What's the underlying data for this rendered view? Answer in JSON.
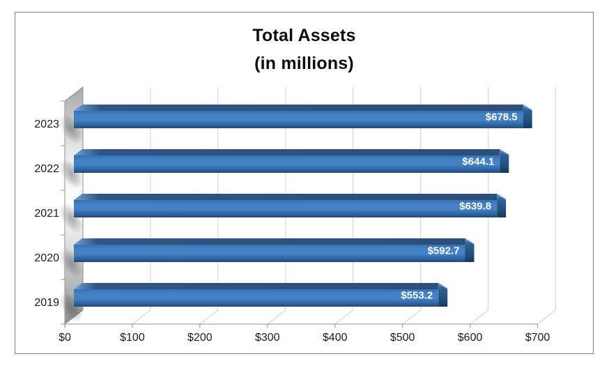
{
  "frame": {
    "background": "#FFFFFF",
    "border_color": "#7F7F7F"
  },
  "chart_data": {
    "type": "bar",
    "orientation": "horizontal",
    "effect": "3d",
    "title": "Total Assets",
    "subtitle": "(in millions)",
    "categories": [
      "2023",
      "2022",
      "2021",
      "2020",
      "2019"
    ],
    "values": [
      678.5,
      644.1,
      639.8,
      592.7,
      553.2
    ],
    "value_labels": [
      "$678.5",
      "$644.1",
      "$639.8",
      "$592.7",
      "$553.2"
    ],
    "xlabel": "",
    "ylabel": "",
    "xlim": [
      0,
      700
    ],
    "xticks": {
      "values": [
        0,
        100,
        200,
        300,
        400,
        500,
        600,
        700
      ],
      "labels": [
        "$0",
        "$100",
        "$200",
        "$300",
        "$400",
        "$500",
        "$600",
        "$700"
      ]
    },
    "grid": "vertical-back-wall",
    "legend": "none",
    "colors": {
      "bar_main": "#2E75B6",
      "bar_light": "#4583C8",
      "bar_dark": "#1F4B77",
      "bar_top": "#2B4E7B",
      "cap_light": "#6E9FD3",
      "cap_dark": "#16395C",
      "cap_highlight": "#9BBCE2",
      "gridline": "#D9D9D9",
      "axis": "#A6A6A6",
      "label_text": "#1A1A1A",
      "value_text": "#FFFFFF",
      "wall_light": "#FFFFFF",
      "wall_mid": "#EFEFEF",
      "wall_dark": "#8F8F8F",
      "wall_edge": "#8C8C8C",
      "smudge": "#3C3C3C",
      "title_text": "#0D0D0D"
    }
  }
}
